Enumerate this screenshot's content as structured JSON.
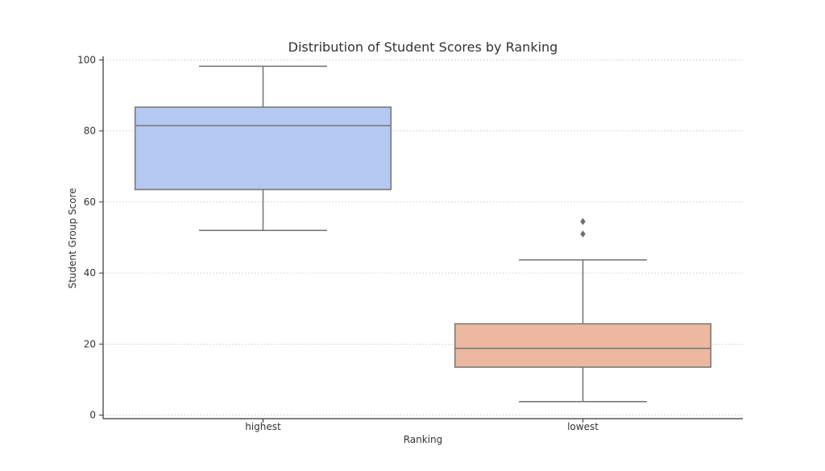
{
  "chart_data": {
    "type": "box",
    "title": "Distribution of Student Scores by Ranking",
    "xlabel": "Ranking",
    "ylabel": "Student Group Score",
    "ylim": [
      -1,
      101
    ],
    "yticks": [
      0,
      20,
      40,
      60,
      80,
      100
    ],
    "grid": "y",
    "categories": [
      "highest",
      "lowest"
    ],
    "boxes": [
      {
        "category": "highest",
        "whisker_low": 52,
        "q1": 63.5,
        "median": 81.5,
        "q3": 86.7,
        "whisker_high": 98.2,
        "outliers": [],
        "color": "#b4c8f2"
      },
      {
        "category": "lowest",
        "whisker_low": 3.8,
        "q1": 13.5,
        "median": 18.8,
        "q3": 25.7,
        "whisker_high": 43.7,
        "outliers": [
          51,
          54.5
        ],
        "color": "#ecb9a0"
      }
    ]
  }
}
